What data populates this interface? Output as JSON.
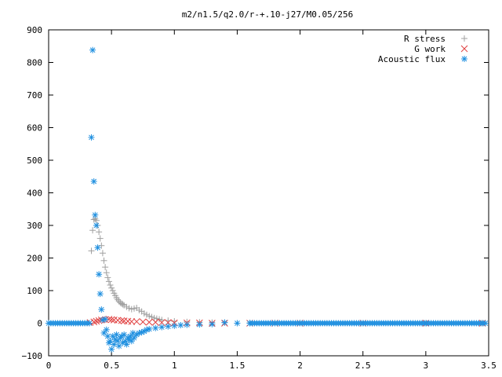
{
  "chart_data": {
    "type": "scatter",
    "title": "m2/n1.5/q2.0/r-+.10-j27/M0.05/256",
    "xlabel": "",
    "ylabel": "",
    "xlim": [
      0,
      3.5
    ],
    "ylim": [
      -100,
      900
    ],
    "x_ticks": [
      0,
      0.5,
      1,
      1.5,
      2,
      2.5,
      3,
      3.5
    ],
    "x_tick_labels": [
      "0",
      "0.5",
      "1",
      "1.5",
      "2",
      "2.5",
      "3",
      "3.5"
    ],
    "y_ticks": [
      -100,
      0,
      100,
      200,
      300,
      400,
      500,
      600,
      700,
      800,
      900
    ],
    "y_tick_labels": [
      "−100",
      "0",
      "100",
      "200",
      "300",
      "400",
      "500",
      "600",
      "700",
      "800",
      "900"
    ],
    "grid": false,
    "legend": "top-right",
    "series": [
      {
        "name": "R stress",
        "marker": "plus",
        "color": "#a0a0a0",
        "x": [
          0.34,
          0.35,
          0.36,
          0.37,
          0.38,
          0.39,
          0.4,
          0.41,
          0.42,
          0.43,
          0.44,
          0.45,
          0.46,
          0.47,
          0.48,
          0.49,
          0.5,
          0.51,
          0.52,
          0.53,
          0.54,
          0.55,
          0.56,
          0.57,
          0.58,
          0.59,
          0.6,
          0.62,
          0.64,
          0.66,
          0.68,
          0.7,
          0.72,
          0.74,
          0.76,
          0.78,
          0.8,
          0.82,
          0.84,
          0.86,
          0.88,
          0.9,
          0.95,
          1.0,
          1.1,
          1.2,
          1.3,
          1.4,
          1.6,
          1.8,
          2.0,
          2.5,
          3.0,
          3.45
        ],
        "y": [
          222,
          285,
          318,
          320,
          315,
          300,
          280,
          260,
          238,
          215,
          192,
          172,
          155,
          140,
          128,
          117,
          108,
          100,
          92,
          85,
          78,
          72,
          67,
          63,
          60,
          58,
          55,
          50,
          46,
          43,
          45,
          47,
          40,
          36,
          30,
          26,
          22,
          19,
          16,
          14,
          12,
          10,
          8,
          6,
          4,
          3,
          2,
          2,
          1,
          1,
          1,
          0,
          0,
          0
        ]
      },
      {
        "name": "G work",
        "marker": "cross",
        "color": "#e04040",
        "x": [
          0.33,
          0.36,
          0.38,
          0.4,
          0.42,
          0.45,
          0.48,
          0.5,
          0.52,
          0.55,
          0.58,
          0.6,
          0.63,
          0.66,
          0.7,
          0.75,
          0.8,
          0.85,
          0.9,
          0.95,
          1.0,
          1.1,
          1.2,
          1.3,
          1.4,
          1.6,
          1.8,
          2.0,
          2.5,
          3.0,
          3.45
        ],
        "y": [
          2,
          4,
          6,
          8,
          10,
          11,
          12,
          11,
          10,
          9,
          8,
          7,
          6,
          5,
          5,
          4,
          3,
          3,
          2,
          2,
          1,
          1,
          1,
          0,
          0,
          0,
          0,
          0,
          0,
          0,
          0
        ]
      },
      {
        "name": "Acoustic flux",
        "marker": "star",
        "color": "#2090e0",
        "x": [
          0.34,
          0.35,
          0.36,
          0.37,
          0.38,
          0.39,
          0.4,
          0.41,
          0.42,
          0.43,
          0.44,
          0.45,
          0.46,
          0.47,
          0.48,
          0.49,
          0.5,
          0.51,
          0.52,
          0.53,
          0.54,
          0.55,
          0.56,
          0.57,
          0.58,
          0.59,
          0.6,
          0.61,
          0.62,
          0.63,
          0.64,
          0.65,
          0.66,
          0.67,
          0.68,
          0.7,
          0.72,
          0.74,
          0.76,
          0.78,
          0.8,
          0.85,
          0.9,
          0.95,
          1.0,
          1.05,
          1.1,
          1.2,
          1.3,
          1.4,
          1.5,
          1.6
        ],
        "y": [
          570,
          838,
          435,
          332,
          300,
          232,
          150,
          90,
          42,
          10,
          -30,
          12,
          -20,
          -40,
          -60,
          -55,
          -80,
          -40,
          -65,
          -50,
          -35,
          -55,
          -70,
          -45,
          -40,
          -60,
          -35,
          -55,
          -65,
          -45,
          -50,
          -40,
          -55,
          -30,
          -45,
          -35,
          -30,
          -28,
          -25,
          -20,
          -18,
          -15,
          -12,
          -10,
          -8,
          -6,
          -5,
          -4,
          -3,
          2,
          0,
          0
        ]
      }
    ]
  }
}
